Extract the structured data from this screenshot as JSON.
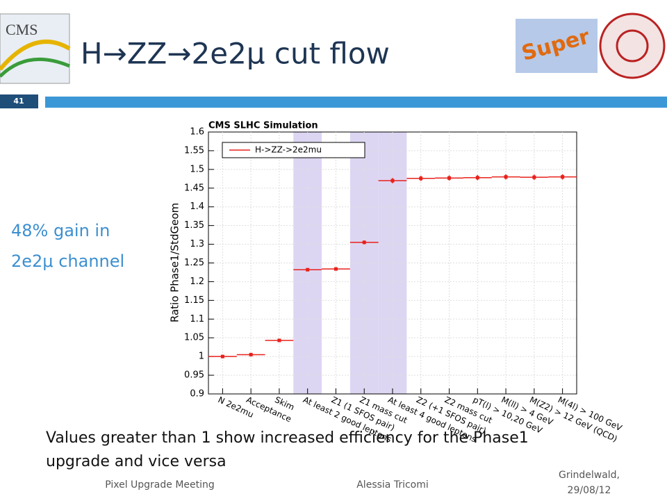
{
  "slide": {
    "title": "H→ZZ→2e2μ cut flow",
    "number": "41",
    "logo_text": "CMS",
    "super_logo": "Super",
    "side_text": [
      "48% gain in",
      "2e2μ channel"
    ],
    "body_text": [
      "Values greater than 1 show increased efficiency for the Phase1",
      "upgrade and vice versa"
    ],
    "footer": {
      "left": "Pixel Upgrade Meeting",
      "center": "Alessia Tricomi",
      "right": [
        "Grindelwald,",
        "29/08/12"
      ]
    }
  },
  "chart_data": {
    "type": "step",
    "title": "CMS SLHC Simulation",
    "ylabel": "Ratio Phase1/StdGeom",
    "categories": [
      "N 2e2mu",
      "Acceptance",
      "Skim",
      "At least 2 good leptons",
      "Z1 (1 SFOS pair)",
      "Z1 mass cut",
      "At least 4 good leptons",
      "Z2 (+1 SFOS pair)",
      "Z2 mass cut",
      "pT(l) > 10,20 GeV",
      "M(ll) > 4 GeV",
      "M(Z2) > 12 GeV (QCD)",
      "M(4l) > 100 GeV"
    ],
    "series": [
      {
        "name": "H->ZZ->2e2mu",
        "color": "#e8201a",
        "values": [
          1.0,
          1.005,
          1.043,
          1.232,
          1.234,
          1.305,
          1.47,
          1.476,
          1.477,
          1.478,
          1.48,
          1.479,
          1.48
        ],
        "errors": [
          0.002,
          0.003,
          0.003,
          0.004,
          0.004,
          0.005,
          0.007,
          0.007,
          0.007,
          0.007,
          0.007,
          0.007,
          0.007
        ]
      }
    ],
    "highlight_bins": [
      3,
      5,
      6
    ],
    "highlight_color": "#ddd6f2",
    "ylim": [
      0.9,
      1.6
    ],
    "yticks": [
      0.9,
      0.95,
      1,
      1.05,
      1.1,
      1.15,
      1.2,
      1.25,
      1.3,
      1.35,
      1.4,
      1.45,
      1.5,
      1.55,
      1.6
    ],
    "grid": true,
    "legend": "upper left"
  }
}
